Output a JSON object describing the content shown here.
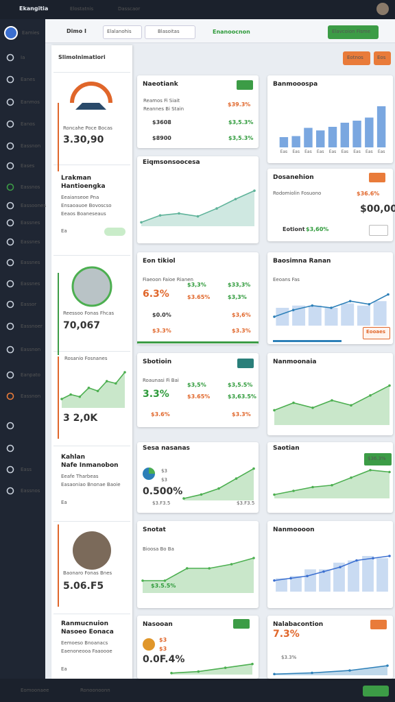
{
  "topbar": {
    "brand": "Ekangitia",
    "tabs": [
      "Elostatnis",
      "Dasscaor"
    ]
  },
  "sidebar": {
    "user": "Eamies",
    "items": [
      "Ia",
      "Eanes",
      "Eanmos",
      "Eanos",
      "Eassnon",
      "Eases",
      "Eassnos",
      "Eassoones",
      "Eassnes",
      "Eassnes",
      "Eassnes",
      "Eassnes",
      "Eassor",
      "Eassnoer",
      "Eassnon",
      "Eanpato",
      "Eassnon",
      "Eass",
      "Eassnos"
    ]
  },
  "toolbar": {
    "title": "Dimo I",
    "search": "Elalanohis",
    "filter": "Blasoitas",
    "status": "Enanoocnon",
    "action": "Elavcoion Fisme",
    "buttons": [
      "Eotnos",
      "Eos"
    ]
  },
  "panel": {
    "title": "Slimolnimatiori",
    "cards": [
      {
        "caption": "Roncahe Poce Bocas",
        "value": "3.30,90"
      },
      {
        "name": "Lrakman",
        "role": "Hantioengka",
        "lines": [
          "Eeaianseoe Pna",
          "Ensaoauoe Bovoscso",
          "Eeaos Boaneseaus"
        ],
        "tag": "Ea"
      },
      {
        "caption": "Reessoo Fonas Fhcas",
        "value": "70,067"
      },
      {
        "caption": "Rosanio Fosnanes",
        "value": "3 2,0K",
        "chart": {
          "type": "area",
          "values": [
            20,
            30,
            25,
            45,
            38,
            60,
            55,
            80
          ],
          "ylim": [
            0,
            100
          ],
          "color": "#4caf50"
        }
      },
      {
        "name": "Kahlan",
        "role": "Nafe Inmanobon",
        "lines": [
          "Eeafe Tharbeas",
          "Easaoniao Bnonae Baoie"
        ],
        "tag": "Ea"
      },
      {
        "caption": "Baonaro Fonas Bnes",
        "value": "5.06.F5"
      },
      {
        "name": "Ranmucnuion",
        "role": "Nasoeo Eonaca",
        "lines": [
          "Eemoeso Bnoanacs",
          "Eaenoneooa Faaoooe"
        ],
        "tag": "Ea"
      }
    ]
  },
  "cards": [
    {
      "title": "Naeotiank",
      "items": [
        "Reamos Fi Siait",
        "Reannes Bi Stain",
        "$39.3%",
        "$3608",
        "$3,5.3%",
        "$8900",
        "$3,5.3%"
      ]
    },
    {
      "title": "Eiqmsonsoocesa",
      "items": [],
      "chart": {
        "type": "area",
        "values": [
          8,
          22,
          26,
          20,
          36,
          55,
          72
        ],
        "ylim": [
          0,
          100
        ],
        "color": "#5fb39a"
      }
    },
    {
      "title": "Eon tikiol",
      "items": [
        "Fiaeoon Faioe Rianen",
        "$3,3%",
        "$33,3%",
        "6.3%",
        "$3.65%",
        "$3,3%",
        "$0.0%",
        "$3,6%",
        "$3.3%",
        "$3.3%"
      ]
    },
    {
      "title": "Sbotioin",
      "items": [
        "Roaunasi Fi Bai",
        "$3,5%",
        "$3,5.5%",
        "3.3%",
        "$3.65%",
        "$3,63.5%",
        "$3.6%",
        "$3.3%"
      ]
    },
    {
      "title": "Sesa nasanas",
      "items": [
        "$3",
        "$3",
        "0.500%",
        "$3.F3.5",
        "$3.F3.5"
      ],
      "chart": {
        "type": "area",
        "values": [
          5,
          15,
          30,
          55,
          80
        ],
        "ylim": [
          0,
          100
        ],
        "color": "#4caf50"
      }
    },
    {
      "title": "Snotat",
      "items": [
        "Bioosa Bo Ba",
        "$3.5.5%"
      ],
      "chart": {
        "type": "area",
        "values": [
          30,
          30,
          60,
          60,
          70,
          85
        ],
        "ylim": [
          0,
          100
        ],
        "color": "#4caf50"
      }
    },
    {
      "title": "Nasooan",
      "items": [
        "$3",
        "$3",
        "0.0F.4%"
      ],
      "chart": {
        "type": "area",
        "values": [
          10,
          20,
          45,
          70
        ],
        "ylim": [
          0,
          100
        ],
        "color": "#4caf50"
      }
    },
    {
      "title": "Banmooospa",
      "items": [],
      "chart": {
        "type": "bar",
        "values": [
          20,
          22,
          38,
          33,
          40,
          48,
          52,
          58,
          80
        ],
        "labels": [
          "Eas",
          "Eas",
          "Eas",
          "Eas",
          "Eas",
          "Eas",
          "Eas",
          "Eas",
          "Eas"
        ],
        "ylim": [
          0,
          100
        ],
        "color": "#7aa7e0"
      }
    },
    {
      "title": "Dosanehion",
      "items": [
        "Rodomiolin Fosuono",
        "$36.6%",
        "$00,00",
        "Eotiont",
        "$3,60%"
      ]
    },
    {
      "title": "Baosimna Ranan",
      "items": [
        "Eeoans Fas",
        "Eooaes"
      ],
      "chart": {
        "type": "barline",
        "values": [
          20,
          35,
          45,
          40,
          55,
          48,
          70
        ],
        "bars": [
          40,
          45,
          45,
          40,
          50,
          45,
          55
        ],
        "ylim": [
          0,
          100
        ],
        "color": "#2c7fb8"
      }
    },
    {
      "title": "Nanmoonaia",
      "items": [],
      "chart": {
        "type": "area",
        "values": [
          30,
          45,
          35,
          50,
          40,
          60,
          80
        ],
        "ylim": [
          0,
          100
        ],
        "color": "#4caf50"
      }
    },
    {
      "title": "Saotian",
      "items": [
        "$36.3%"
      ],
      "chart": {
        "type": "area",
        "values": [
          10,
          20,
          30,
          35,
          55,
          75,
          70
        ],
        "ylim": [
          0,
          100
        ],
        "color": "#4caf50"
      }
    },
    {
      "title": "Nanmoooon",
      "items": [],
      "chart": {
        "type": "barline",
        "values": [
          25,
          30,
          35,
          45,
          55,
          70,
          75,
          80
        ],
        "bars": [
          30,
          35,
          50,
          50,
          65,
          70,
          80,
          75
        ],
        "ylim": [
          0,
          100
        ],
        "color": "#3b6fd0"
      }
    },
    {
      "title": "Nalabacontion",
      "items": [
        "7.3%",
        "$3.3%"
      ],
      "chart": {
        "type": "area",
        "values": [
          5,
          10,
          20,
          40
        ],
        "ylim": [
          0,
          100
        ],
        "color": "#2c7fb8"
      }
    }
  ],
  "footer": {
    "left": "Eomoonaee",
    "middle": "Ronoonoonn"
  }
}
